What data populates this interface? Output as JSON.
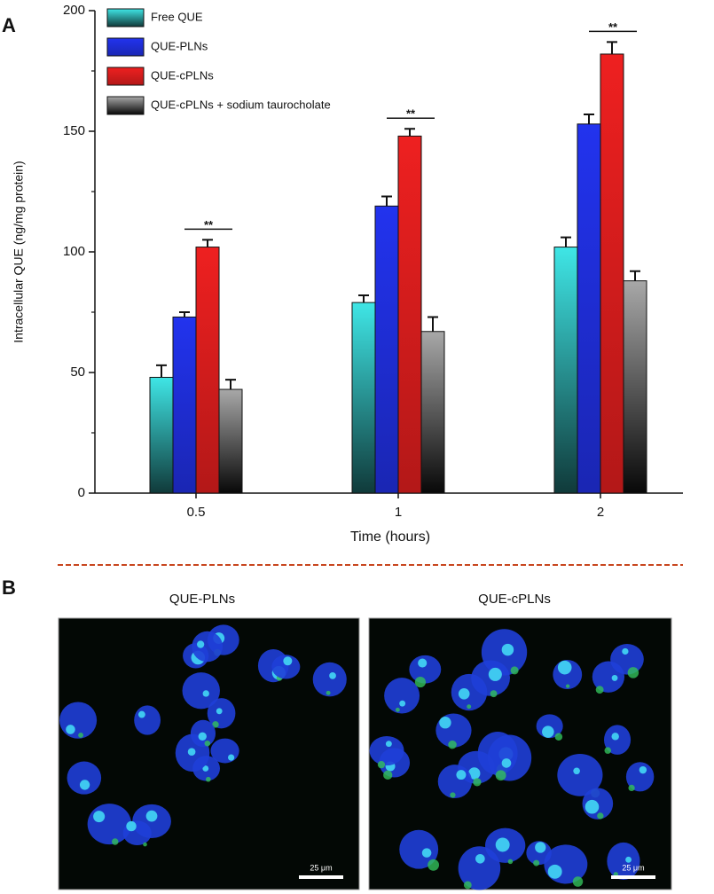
{
  "panel_labels": {
    "a": "A",
    "b": "B"
  },
  "chart_data": {
    "type": "bar",
    "y_label": "Intracellular QUE (ng/mg protein)",
    "x_label": "Time (hours)",
    "categories": [
      "0.5",
      "1",
      "2"
    ],
    "series": [
      {
        "name": "Free QUE",
        "color": "#3fe6e6",
        "values": [
          48,
          79,
          102
        ],
        "errors": [
          5,
          3,
          4
        ]
      },
      {
        "name": "QUE-PLNs",
        "color": "#2233ee",
        "values": [
          73,
          119,
          153
        ],
        "errors": [
          2,
          4,
          4
        ]
      },
      {
        "name": "QUE-cPLNs",
        "color": "#ee2020",
        "values": [
          102,
          148,
          182
        ],
        "errors": [
          3,
          3,
          5
        ]
      },
      {
        "name": "QUE-cPLNs + sodium taurocholate",
        "color": "#a8a8a8",
        "values": [
          43,
          67,
          88
        ],
        "errors": [
          4,
          6,
          4
        ]
      }
    ],
    "significance": [
      "**",
      "**",
      "**"
    ],
    "ylim": [
      0,
      200
    ],
    "yticks": [
      0,
      50,
      100,
      150,
      200
    ],
    "yminorticks": [
      25,
      75,
      125,
      175
    ],
    "legend": "upper-left"
  },
  "images": [
    {
      "title": "QUE-PLNs",
      "scale_bar": "25 μm"
    },
    {
      "title": "QUE-cPLNs",
      "scale_bar": "25 μm"
    }
  ]
}
